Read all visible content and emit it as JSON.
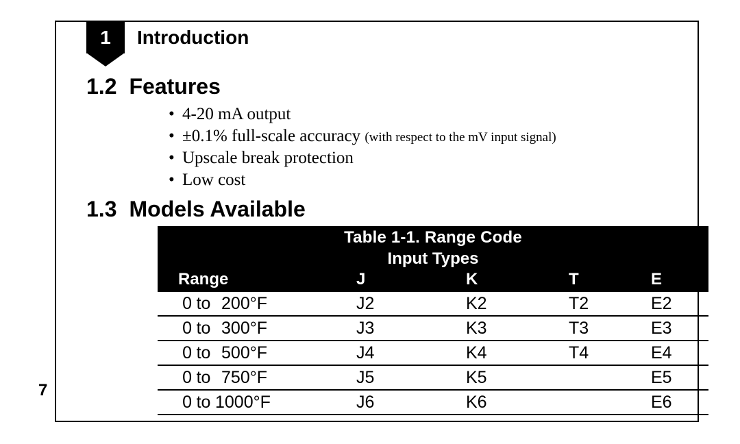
{
  "chapter": {
    "number": "1",
    "title": "Introduction"
  },
  "sections": {
    "features": {
      "number": "1.2",
      "title": "Features",
      "bullets": [
        {
          "text": "4-20 mA output"
        },
        {
          "text": "±0.1% full-scale accuracy ",
          "small": "with respect to the mV input signal)",
          "small_prefix": "("
        },
        {
          "text": "Upscale break protection"
        },
        {
          "text": "Low cost"
        }
      ]
    },
    "models": {
      "number": "1.3",
      "title": "Models Available",
      "table": {
        "title": "Table 1-1. Range Code",
        "subhead": "Input Types",
        "columns": {
          "range": "Range",
          "j": "J",
          "k": "K",
          "t": "T",
          "e": "E"
        },
        "unit": "°F",
        "rows": [
          {
            "from": "0",
            "to": "200",
            "j": "J2",
            "k": "K2",
            "t": "T2",
            "e": "E2"
          },
          {
            "from": "0",
            "to": "300",
            "j": "J3",
            "k": "K3",
            "t": "T3",
            "e": "E3"
          },
          {
            "from": "0",
            "to": "500",
            "j": "J4",
            "k": "K4",
            "t": "T4",
            "e": "E4"
          },
          {
            "from": "0",
            "to": "750",
            "j": "J5",
            "k": "K5",
            "t": "",
            "e": "E5"
          },
          {
            "from": "0",
            "to": "1000",
            "j": "J6",
            "k": "K6",
            "t": "",
            "e": "E6"
          }
        ]
      }
    }
  },
  "page_number": "7",
  "colors": {
    "ink": "#000000",
    "paper": "#ffffff"
  },
  "fonts": {
    "sans": "Helvetica Neue, Helvetica, Arial, sans-serif",
    "serif": "Palatino Linotype, Palatino, Book Antiqua, Georgia, serif",
    "heading_size_pt": 24,
    "body_size_pt": 19,
    "table_size_pt": 19
  }
}
